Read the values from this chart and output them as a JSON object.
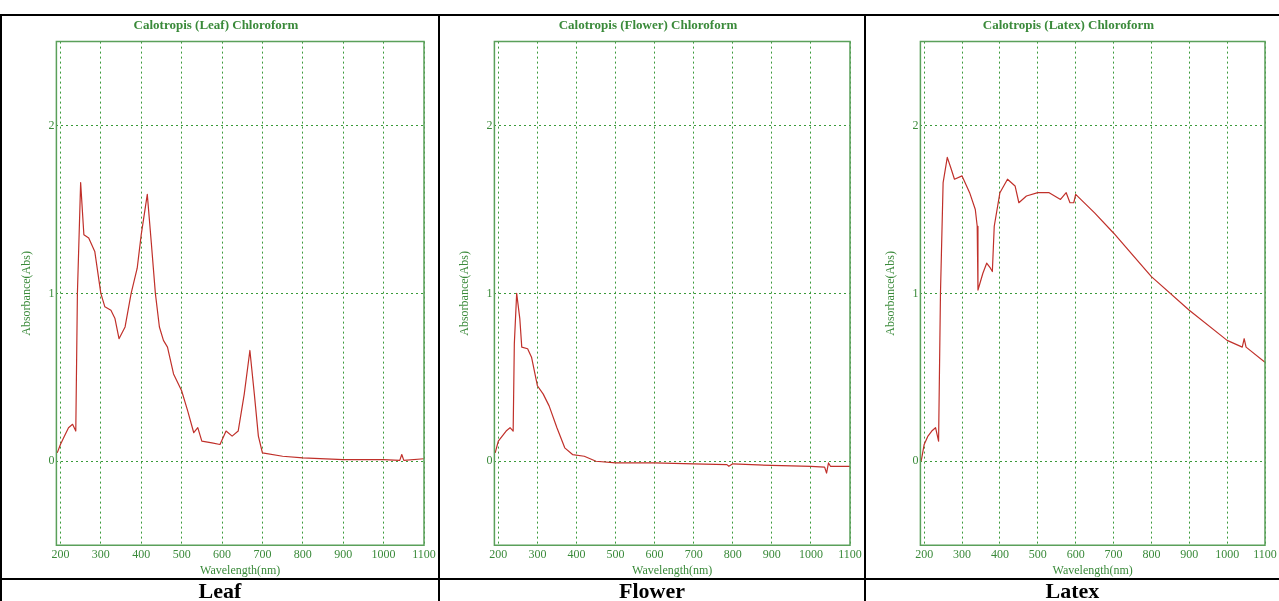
{
  "chart_data": [
    {
      "type": "line",
      "title": "Calotropis (Leaf) Chloroform",
      "xlabel": "Wavelength(nm)",
      "ylabel": "Absorbance(Abs)",
      "xlim": [
        190,
        1100
      ],
      "xticks": [
        200,
        300,
        400,
        500,
        600,
        700,
        800,
        900,
        1000,
        1100
      ],
      "ylim": [
        -0.5,
        2.5
      ],
      "yticks": [
        0,
        1,
        2
      ],
      "grid": true,
      "annotations": [
        "Leaf"
      ],
      "series": [
        {
          "color": "#c0302a",
          "x": [
            192,
            200,
            210,
            220,
            230,
            238,
            242,
            250,
            258,
            270,
            285,
            300,
            310,
            325,
            335,
            345,
            360,
            375,
            390,
            400,
            415,
            425,
            435,
            445,
            455,
            465,
            480,
            500,
            515,
            530,
            540,
            550,
            575,
            595,
            610,
            625,
            640,
            655,
            669,
            680,
            690,
            700,
            750,
            800,
            900,
            1000,
            1040,
            1045,
            1050,
            1100
          ],
          "values": [
            0.05,
            0.1,
            0.15,
            0.2,
            0.22,
            0.18,
            1.0,
            1.66,
            1.35,
            1.33,
            1.25,
            1.0,
            0.92,
            0.9,
            0.85,
            0.73,
            0.8,
            1.0,
            1.15,
            1.35,
            1.59,
            1.3,
            1.0,
            0.8,
            0.72,
            0.68,
            0.52,
            0.42,
            0.3,
            0.17,
            0.2,
            0.12,
            0.11,
            0.1,
            0.18,
            0.15,
            0.18,
            0.4,
            0.66,
            0.4,
            0.15,
            0.05,
            0.03,
            0.02,
            0.01,
            0.01,
            0.005,
            0.04,
            0.005,
            0.015
          ]
        }
      ]
    },
    {
      "type": "line",
      "title": "Calotropis (Flower) Chloroform",
      "xlabel": "Wavelength(nm)",
      "ylabel": "Absorbance(Abs)",
      "xlim": [
        190,
        1100
      ],
      "xticks": [
        200,
        300,
        400,
        500,
        600,
        700,
        800,
        900,
        1000,
        1100
      ],
      "ylim": [
        -0.5,
        2.5
      ],
      "yticks": [
        0,
        1,
        2
      ],
      "grid": true,
      "annotations": [
        "Flower"
      ],
      "series": [
        {
          "color": "#c0302a",
          "x": [
            192,
            200,
            210,
            220,
            230,
            238,
            241,
            247,
            255,
            260,
            275,
            285,
            300,
            315,
            330,
            350,
            370,
            390,
            420,
            450,
            500,
            600,
            700,
            785,
            790,
            800,
            900,
            1000,
            1035,
            1040,
            1045,
            1050,
            1100
          ],
          "values": [
            0.05,
            0.12,
            0.15,
            0.18,
            0.2,
            0.18,
            0.7,
            1.0,
            0.85,
            0.68,
            0.67,
            0.62,
            0.45,
            0.4,
            0.33,
            0.2,
            0.08,
            0.04,
            0.03,
            0.0,
            -0.01,
            -0.01,
            -0.015,
            -0.02,
            -0.03,
            -0.015,
            -0.025,
            -0.03,
            -0.035,
            -0.07,
            -0.01,
            -0.03,
            -0.03
          ]
        }
      ]
    },
    {
      "type": "line",
      "title": "Calotropis (Latex) Chloroform",
      "xlabel": "Wavelength(nm)",
      "ylabel": "Absorbance(Abs)",
      "xlim": [
        190,
        1100
      ],
      "xticks": [
        200,
        300,
        400,
        500,
        600,
        700,
        800,
        900,
        1000,
        1100
      ],
      "ylim": [
        -0.5,
        2.5
      ],
      "yticks": [
        0,
        1,
        2
      ],
      "grid": true,
      "annotations": [
        "Latex"
      ],
      "series": [
        {
          "color": "#c0302a",
          "x": [
            192,
            200,
            210,
            220,
            230,
            238,
            243,
            250,
            261,
            270,
            280,
            300,
            320,
            335,
            340,
            342,
            355,
            365,
            375,
            380,
            385,
            400,
            420,
            440,
            450,
            470,
            500,
            530,
            560,
            575,
            585,
            595,
            600,
            650,
            700,
            800,
            900,
            1000,
            1040,
            1045,
            1050,
            1100
          ],
          "values": [
            0.0,
            0.1,
            0.15,
            0.18,
            0.2,
            0.12,
            1.0,
            1.66,
            1.81,
            1.75,
            1.68,
            1.7,
            1.6,
            1.5,
            1.4,
            1.02,
            1.12,
            1.18,
            1.15,
            1.13,
            1.4,
            1.6,
            1.68,
            1.64,
            1.54,
            1.58,
            1.6,
            1.6,
            1.56,
            1.6,
            1.54,
            1.54,
            1.59,
            1.48,
            1.36,
            1.1,
            0.9,
            0.72,
            0.68,
            0.73,
            0.68,
            0.59
          ]
        }
      ]
    }
  ]
}
